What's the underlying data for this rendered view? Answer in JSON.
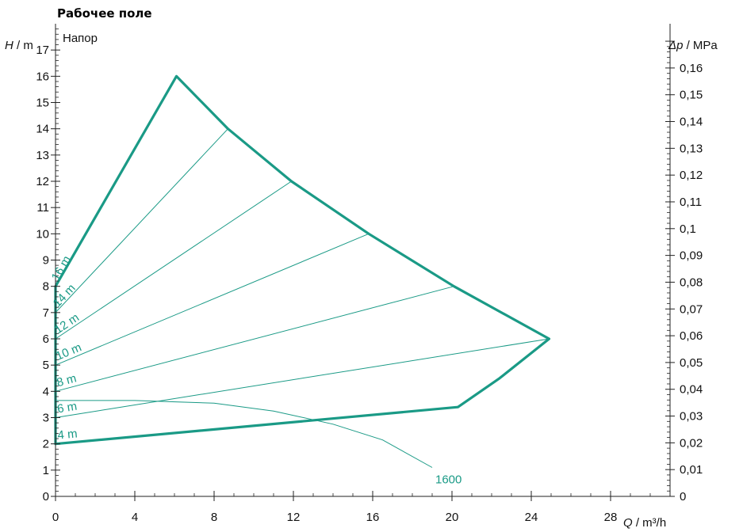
{
  "chart_data": {
    "type": "line",
    "title": "Рабочее поле",
    "panel_label": "Напор",
    "accent_color": "#1a9a86",
    "y_label": {
      "var": "H",
      "unit": " / m"
    },
    "y2_label": {
      "var": "Δp",
      "unit": " / MPa"
    },
    "x_label": {
      "var": "Q",
      "unit": " / m³/h"
    },
    "xlim": [
      0,
      31
    ],
    "ylim": [
      0,
      18
    ],
    "x_ticks": [
      "0",
      "4",
      "8",
      "12",
      "16",
      "20",
      "24",
      "28"
    ],
    "y_ticks": [
      "0",
      "1",
      "2",
      "3",
      "4",
      "5",
      "6",
      "7",
      "8",
      "9",
      "10",
      "11",
      "12",
      "13",
      "14",
      "15",
      "16",
      "17"
    ],
    "y2_ticks": [
      "0",
      "0,01",
      "0,02",
      "0,03",
      "0,04",
      "0,05",
      "0,06",
      "0,07",
      "0,08",
      "0,09",
      "0,1",
      "0,11",
      "0,12",
      "0,13",
      "0,14",
      "0,15",
      "0,16"
    ],
    "envelope": [
      [
        0,
        8
      ],
      [
        6.1,
        16
      ],
      [
        8.7,
        14
      ],
      [
        11.9,
        12
      ],
      [
        15.8,
        10
      ],
      [
        20.1,
        8
      ],
      [
        24.9,
        6
      ],
      [
        22.4,
        4.5
      ],
      [
        20.3,
        3.4
      ],
      [
        0,
        2
      ]
    ],
    "constant_head_lines": [
      {
        "label": "16 m",
        "points": [
          [
            0,
            8
          ],
          [
            6.1,
            16
          ]
        ]
      },
      {
        "label": "14 m",
        "points": [
          [
            0,
            7
          ],
          [
            8.7,
            14
          ]
        ]
      },
      {
        "label": "12 m",
        "points": [
          [
            0,
            6
          ],
          [
            11.9,
            12
          ]
        ]
      },
      {
        "label": "10 m",
        "points": [
          [
            0,
            5
          ],
          [
            15.8,
            10
          ]
        ]
      },
      {
        "label": "8 m",
        "points": [
          [
            0,
            4
          ],
          [
            20.1,
            8
          ]
        ]
      },
      {
        "label": "6 m",
        "points": [
          [
            0,
            3
          ],
          [
            24.9,
            6
          ]
        ]
      },
      {
        "label": "4 m",
        "points": [
          [
            0,
            2
          ],
          [
            20.3,
            3.4
          ]
        ]
      }
    ],
    "system_curve": {
      "label": "1600",
      "points": [
        [
          0,
          3.65
        ],
        [
          4,
          3.65
        ],
        [
          8,
          3.55
        ],
        [
          11,
          3.25
        ],
        [
          14,
          2.75
        ],
        [
          16.5,
          2.15
        ],
        [
          19,
          1.1
        ]
      ]
    }
  }
}
